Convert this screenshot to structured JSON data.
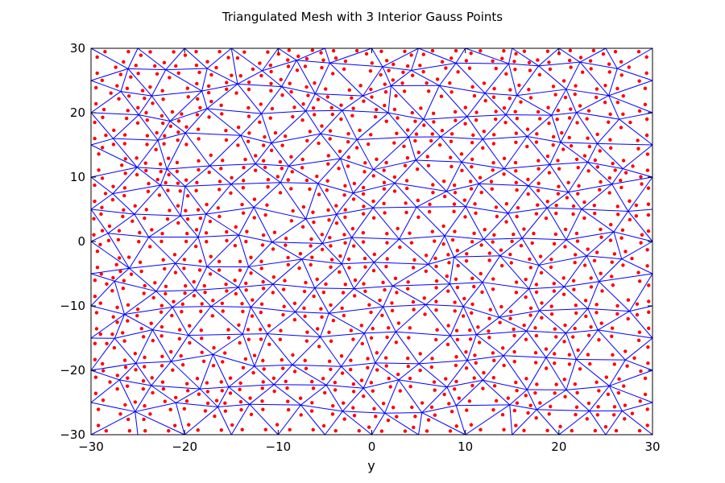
{
  "chart_data": {
    "type": "scatter",
    "title": "Triangulated Mesh with 3 Interior Gauss Points",
    "xlabel": "y",
    "ylabel": "",
    "xlim": [
      -30,
      30
    ],
    "ylim": [
      -30,
      30
    ],
    "x_ticks": [
      "−30",
      "−20",
      "−10",
      "0",
      "10",
      "20",
      "30"
    ],
    "y_ticks": [
      "−30",
      "−20",
      "−10",
      "0",
      "10",
      "20",
      "30"
    ],
    "grid": false,
    "legend": "none",
    "mesh_color": "#0000ff",
    "points_color": "#ff0000",
    "gauss_points_per_triangle": 3
  }
}
